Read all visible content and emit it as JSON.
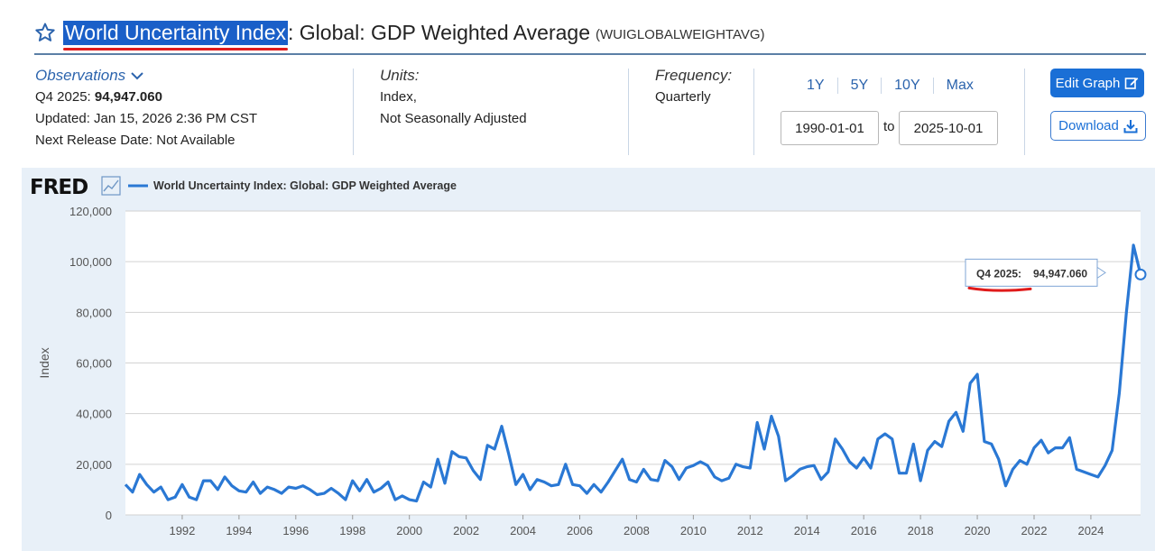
{
  "header": {
    "title_highlight": "World Uncertainty Index",
    "title_rest": ": Global: GDP Weighted Average",
    "series_id": "(WUIGLOBALWEIGHTAVG)"
  },
  "observations": {
    "label": "Observations",
    "latest_period": "Q4 2025:",
    "latest_value": "94,947.060",
    "updated": "Updated: Jan 15, 2026 2:36 PM CST",
    "next_release": "Next Release Date: Not Available"
  },
  "units": {
    "label": "Units:",
    "line1": "Index,",
    "line2": "Not Seasonally Adjusted"
  },
  "frequency": {
    "label": "Frequency:",
    "value": "Quarterly"
  },
  "range": {
    "buttons": [
      "1Y",
      "5Y",
      "10Y",
      "Max"
    ],
    "start": "1990-01-01",
    "to_label": "to",
    "end": "2025-10-01"
  },
  "actions": {
    "edit_label": "Edit Graph",
    "download_label": "Download"
  },
  "colors": {
    "series": "#2a78d4",
    "accent": "#2c64ad",
    "highlight": "#1a5fc8",
    "underline": "#e01b1b",
    "panel": "#e8f0f8"
  },
  "chart_data": {
    "type": "line",
    "logo": "FRED",
    "legend": "World Uncertainty Index: Global: GDP Weighted Average",
    "ylabel": "Index",
    "ylim": [
      0,
      120000
    ],
    "yticks": [
      0,
      20000,
      40000,
      60000,
      80000,
      100000,
      120000
    ],
    "ytick_labels": [
      "0",
      "20,000",
      "40,000",
      "60,000",
      "80,000",
      "100,000",
      "120,000"
    ],
    "xticks": [
      1992,
      1994,
      1996,
      1998,
      2000,
      2002,
      2004,
      2006,
      2008,
      2010,
      2012,
      2014,
      2016,
      2018,
      2020,
      2022,
      2024
    ],
    "xlim": [
      1990.0,
      2025.75
    ],
    "grid": true,
    "tooltip": {
      "period": "Q4 2025:",
      "value": "94,947.060"
    },
    "series": [
      {
        "name": "World Uncertainty Index: Global: GDP Weighted Average",
        "x": [
          1990.0,
          1990.25,
          1990.5,
          1990.75,
          1991.0,
          1991.25,
          1991.5,
          1991.75,
          1992.0,
          1992.25,
          1992.5,
          1992.75,
          1993.0,
          1993.25,
          1993.5,
          1993.75,
          1994.0,
          1994.25,
          1994.5,
          1994.75,
          1995.0,
          1995.25,
          1995.5,
          1995.75,
          1996.0,
          1996.25,
          1996.5,
          1996.75,
          1997.0,
          1997.25,
          1997.5,
          1997.75,
          1998.0,
          1998.25,
          1998.5,
          1998.75,
          1999.0,
          1999.25,
          1999.5,
          1999.75,
          2000.0,
          2000.25,
          2000.5,
          2000.75,
          2001.0,
          2001.25,
          2001.5,
          2001.75,
          2002.0,
          2002.25,
          2002.5,
          2002.75,
          2003.0,
          2003.25,
          2003.5,
          2003.75,
          2004.0,
          2004.25,
          2004.5,
          2004.75,
          2005.0,
          2005.25,
          2005.5,
          2005.75,
          2006.0,
          2006.25,
          2006.5,
          2006.75,
          2007.0,
          2007.25,
          2007.5,
          2007.75,
          2008.0,
          2008.25,
          2008.5,
          2008.75,
          2009.0,
          2009.25,
          2009.5,
          2009.75,
          2010.0,
          2010.25,
          2010.5,
          2010.75,
          2011.0,
          2011.25,
          2011.5,
          2011.75,
          2012.0,
          2012.25,
          2012.5,
          2012.75,
          2013.0,
          2013.25,
          2013.5,
          2013.75,
          2014.0,
          2014.25,
          2014.5,
          2014.75,
          2015.0,
          2015.25,
          2015.5,
          2015.75,
          2016.0,
          2016.25,
          2016.5,
          2016.75,
          2017.0,
          2017.25,
          2017.5,
          2017.75,
          2018.0,
          2018.25,
          2018.5,
          2018.75,
          2019.0,
          2019.25,
          2019.5,
          2019.75,
          2020.0,
          2020.25,
          2020.5,
          2020.75,
          2021.0,
          2021.25,
          2021.5,
          2021.75,
          2022.0,
          2022.25,
          2022.5,
          2022.75,
          2023.0,
          2023.25,
          2023.5,
          2023.75,
          2024.0,
          2024.25,
          2024.5,
          2024.75,
          2025.0,
          2025.25,
          2025.5,
          2025.75
        ],
        "values": [
          12000,
          9000,
          16000,
          12000,
          9000,
          11000,
          6000,
          7000,
          12000,
          7000,
          6000,
          13500,
          13500,
          10000,
          15000,
          11500,
          9500,
          9000,
          13000,
          8500,
          11000,
          10000,
          8500,
          11000,
          10500,
          11500,
          10000,
          8000,
          8500,
          10500,
          8500,
          6000,
          13500,
          9500,
          14000,
          9000,
          10500,
          13000,
          6000,
          7500,
          6000,
          5500,
          13000,
          11000,
          22000,
          12500,
          25000,
          23000,
          22500,
          17500,
          14000,
          27500,
          26000,
          35000,
          24000,
          12000,
          16000,
          10000,
          14000,
          13000,
          11500,
          12000,
          20000,
          12000,
          11500,
          8500,
          12000,
          9000,
          13000,
          17500,
          22000,
          14000,
          13000,
          18000,
          14000,
          13500,
          21500,
          19000,
          14000,
          18500,
          19500,
          21000,
          19500,
          15000,
          13500,
          14500,
          20000,
          19000,
          18500,
          36500,
          26000,
          39000,
          31000,
          13500,
          15500,
          18000,
          19000,
          19500,
          14000,
          17000,
          30000,
          26000,
          21000,
          18500,
          22500,
          18500,
          30000,
          32000,
          30000,
          16500,
          16500,
          28000,
          13500,
          25500,
          29000,
          27000,
          37000,
          40500,
          33000,
          52000,
          55500,
          29000,
          28000,
          22000,
          11500,
          18000,
          21500,
          20000,
          26500,
          29500,
          24500,
          26500,
          26500,
          30500,
          18000,
          17000,
          16000,
          15000,
          19500,
          25500,
          48000,
          80000,
          106500,
          94947
        ]
      }
    ]
  }
}
